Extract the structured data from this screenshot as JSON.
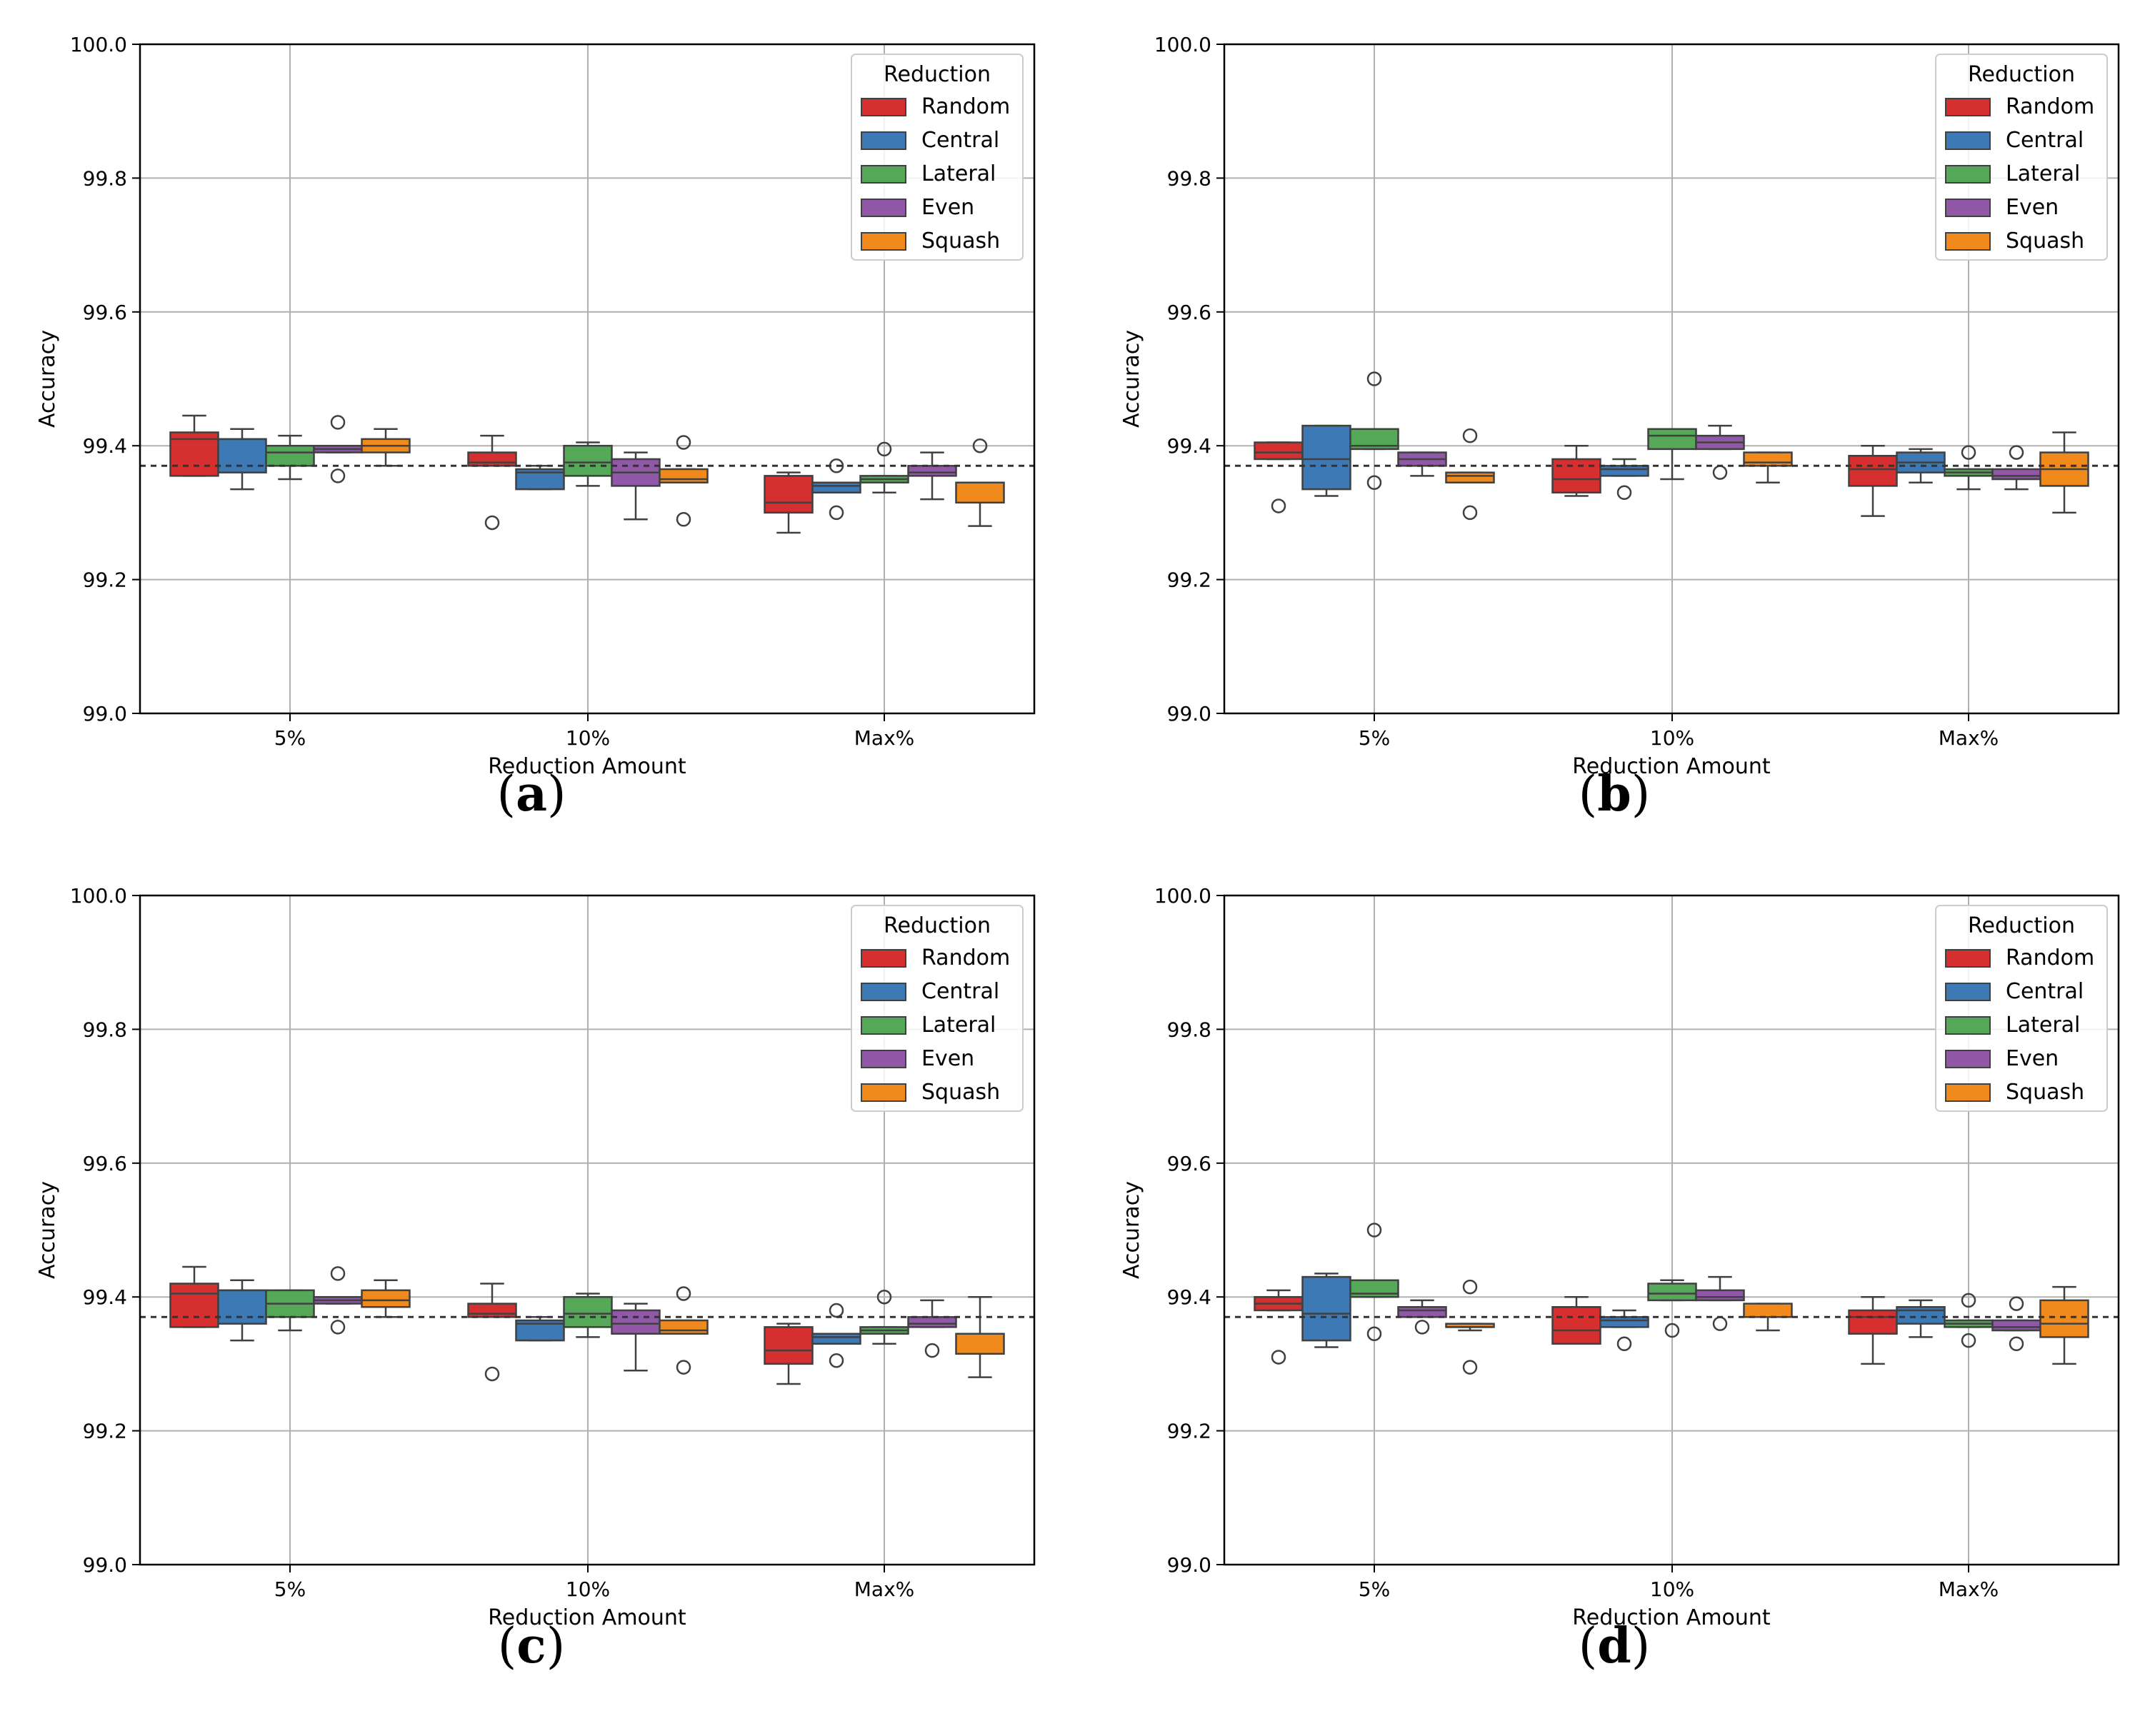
{
  "colors": {
    "Random": "#d62f2f",
    "Central": "#3d7ab5",
    "Lateral": "#55a857",
    "Even": "#9158a8",
    "Squash": "#f08a1c"
  },
  "chart_data": [
    {
      "panel": "(a)",
      "type": "box",
      "xlabel": "Reduction Amount",
      "ylabel": "Accuracy",
      "ylim": [
        99.0,
        100.0
      ],
      "yticks": [
        "99.0",
        "99.2",
        "99.4",
        "99.6",
        "99.8",
        "100.0"
      ],
      "categories": [
        "5%",
        "10%",
        "Max%"
      ],
      "legend_title": "Reduction",
      "legend": [
        "Random",
        "Central",
        "Lateral",
        "Even",
        "Squash"
      ],
      "baseline": 99.37,
      "series": [
        {
          "name": "Random",
          "boxes": [
            {
              "min": 99.355,
              "q1": 99.355,
              "median": 99.41,
              "q3": 99.42,
              "max": 99.445,
              "outliers": []
            },
            {
              "min": 99.37,
              "q1": 99.37,
              "median": 99.375,
              "q3": 99.39,
              "max": 99.415,
              "outliers": [
                99.285
              ]
            },
            {
              "min": 99.27,
              "q1": 99.3,
              "median": 99.315,
              "q3": 99.355,
              "max": 99.36,
              "outliers": []
            }
          ]
        },
        {
          "name": "Central",
          "boxes": [
            {
              "min": 99.335,
              "q1": 99.36,
              "median": 99.41,
              "q3": 99.41,
              "max": 99.425,
              "outliers": []
            },
            {
              "min": 99.335,
              "q1": 99.335,
              "median": 99.36,
              "q3": 99.365,
              "max": 99.37,
              "outliers": []
            },
            {
              "min": 99.33,
              "q1": 99.33,
              "median": 99.34,
              "q3": 99.345,
              "max": 99.345,
              "outliers": [
                99.37,
                99.3
              ]
            }
          ]
        },
        {
          "name": "Lateral",
          "boxes": [
            {
              "min": 99.35,
              "q1": 99.37,
              "median": 99.39,
              "q3": 99.4,
              "max": 99.415,
              "outliers": []
            },
            {
              "min": 99.34,
              "q1": 99.355,
              "median": 99.375,
              "q3": 99.4,
              "max": 99.405,
              "outliers": []
            },
            {
              "min": 99.33,
              "q1": 99.345,
              "median": 99.35,
              "q3": 99.355,
              "max": 99.355,
              "outliers": [
                99.395
              ]
            }
          ]
        },
        {
          "name": "Even",
          "boxes": [
            {
              "min": 99.39,
              "q1": 99.39,
              "median": 99.395,
              "q3": 99.4,
              "max": 99.4,
              "outliers": [
                99.435,
                99.355
              ]
            },
            {
              "min": 99.29,
              "q1": 99.34,
              "median": 99.36,
              "q3": 99.38,
              "max": 99.39,
              "outliers": []
            },
            {
              "min": 99.32,
              "q1": 99.355,
              "median": 99.36,
              "q3": 99.37,
              "max": 99.39,
              "outliers": []
            }
          ]
        },
        {
          "name": "Squash",
          "boxes": [
            {
              "min": 99.37,
              "q1": 99.39,
              "median": 99.4,
              "q3": 99.41,
              "max": 99.425,
              "outliers": []
            },
            {
              "min": 99.345,
              "q1": 99.345,
              "median": 99.35,
              "q3": 99.365,
              "max": 99.365,
              "outliers": [
                99.405,
                99.29
              ]
            },
            {
              "min": 99.28,
              "q1": 99.315,
              "median": 99.345,
              "q3": 99.345,
              "max": 99.345,
              "outliers": [
                99.4
              ]
            }
          ]
        }
      ]
    },
    {
      "panel": "(b)",
      "type": "box",
      "xlabel": "Reduction Amount",
      "ylabel": "Accuracy",
      "ylim": [
        99.0,
        100.0
      ],
      "yticks": [
        "99.0",
        "99.2",
        "99.4",
        "99.6",
        "99.8",
        "100.0"
      ],
      "categories": [
        "5%",
        "10%",
        "Max%"
      ],
      "legend_title": "Reduction",
      "legend": [
        "Random",
        "Central",
        "Lateral",
        "Even",
        "Squash"
      ],
      "baseline": 99.37,
      "series": [
        {
          "name": "Random",
          "boxes": [
            {
              "min": 99.38,
              "q1": 99.38,
              "median": 99.39,
              "q3": 99.405,
              "max": 99.405,
              "outliers": [
                99.31
              ]
            },
            {
              "min": 99.325,
              "q1": 99.33,
              "median": 99.35,
              "q3": 99.38,
              "max": 99.4,
              "outliers": []
            },
            {
              "min": 99.295,
              "q1": 99.34,
              "median": 99.365,
              "q3": 99.385,
              "max": 99.4,
              "outliers": []
            }
          ]
        },
        {
          "name": "Central",
          "boxes": [
            {
              "min": 99.325,
              "q1": 99.335,
              "median": 99.38,
              "q3": 99.43,
              "max": 99.43,
              "outliers": []
            },
            {
              "min": 99.355,
              "q1": 99.355,
              "median": 99.365,
              "q3": 99.37,
              "max": 99.38,
              "outliers": [
                99.33
              ]
            },
            {
              "min": 99.345,
              "q1": 99.36,
              "median": 99.375,
              "q3": 99.39,
              "max": 99.395,
              "outliers": []
            }
          ]
        },
        {
          "name": "Lateral",
          "boxes": [
            {
              "min": 99.395,
              "q1": 99.395,
              "median": 99.4,
              "q3": 99.425,
              "max": 99.425,
              "outliers": [
                99.5,
                99.345
              ]
            },
            {
              "min": 99.35,
              "q1": 99.395,
              "median": 99.415,
              "q3": 99.425,
              "max": 99.425,
              "outliers": []
            },
            {
              "min": 99.335,
              "q1": 99.355,
              "median": 99.36,
              "q3": 99.365,
              "max": 99.365,
              "outliers": [
                99.39
              ]
            }
          ]
        },
        {
          "name": "Even",
          "boxes": [
            {
              "min": 99.355,
              "q1": 99.37,
              "median": 99.38,
              "q3": 99.39,
              "max": 99.39,
              "outliers": []
            },
            {
              "min": 99.395,
              "q1": 99.395,
              "median": 99.405,
              "q3": 99.415,
              "max": 99.43,
              "outliers": [
                99.36
              ]
            },
            {
              "min": 99.335,
              "q1": 99.35,
              "median": 99.355,
              "q3": 99.365,
              "max": 99.365,
              "outliers": [
                99.39
              ]
            }
          ]
        },
        {
          "name": "Squash",
          "boxes": [
            {
              "min": 99.345,
              "q1": 99.345,
              "median": 99.355,
              "q3": 99.36,
              "max": 99.36,
              "outliers": [
                99.415,
                99.3
              ]
            },
            {
              "min": 99.345,
              "q1": 99.37,
              "median": 99.375,
              "q3": 99.39,
              "max": 99.39,
              "outliers": []
            },
            {
              "min": 99.3,
              "q1": 99.34,
              "median": 99.365,
              "q3": 99.39,
              "max": 99.42,
              "outliers": []
            }
          ]
        }
      ]
    },
    {
      "panel": "(c)",
      "type": "box",
      "xlabel": "Reduction Amount",
      "ylabel": "Accuracy",
      "ylim": [
        99.0,
        100.0
      ],
      "yticks": [
        "99.0",
        "99.2",
        "99.4",
        "99.6",
        "99.8",
        "100.0"
      ],
      "categories": [
        "5%",
        "10%",
        "Max%"
      ],
      "legend_title": "Reduction",
      "legend": [
        "Random",
        "Central",
        "Lateral",
        "Even",
        "Squash"
      ],
      "baseline": 99.37,
      "series": [
        {
          "name": "Random",
          "boxes": [
            {
              "min": 99.355,
              "q1": 99.355,
              "median": 99.405,
              "q3": 99.42,
              "max": 99.445,
              "outliers": []
            },
            {
              "min": 99.37,
              "q1": 99.37,
              "median": 99.375,
              "q3": 99.39,
              "max": 99.42,
              "outliers": [
                99.285
              ]
            },
            {
              "min": 99.27,
              "q1": 99.3,
              "median": 99.32,
              "q3": 99.355,
              "max": 99.36,
              "outliers": []
            }
          ]
        },
        {
          "name": "Central",
          "boxes": [
            {
              "min": 99.335,
              "q1": 99.36,
              "median": 99.41,
              "q3": 99.41,
              "max": 99.425,
              "outliers": []
            },
            {
              "min": 99.335,
              "q1": 99.335,
              "median": 99.36,
              "q3": 99.365,
              "max": 99.37,
              "outliers": []
            },
            {
              "min": 99.33,
              "q1": 99.33,
              "median": 99.34,
              "q3": 99.345,
              "max": 99.345,
              "outliers": [
                99.38,
                99.305
              ]
            }
          ]
        },
        {
          "name": "Lateral",
          "boxes": [
            {
              "min": 99.35,
              "q1": 99.37,
              "median": 99.39,
              "q3": 99.41,
              "max": 99.41,
              "outliers": []
            },
            {
              "min": 99.34,
              "q1": 99.355,
              "median": 99.375,
              "q3": 99.4,
              "max": 99.405,
              "outliers": []
            },
            {
              "min": 99.33,
              "q1": 99.345,
              "median": 99.35,
              "q3": 99.355,
              "max": 99.355,
              "outliers": [
                99.4
              ]
            }
          ]
        },
        {
          "name": "Even",
          "boxes": [
            {
              "min": 99.39,
              "q1": 99.39,
              "median": 99.395,
              "q3": 99.4,
              "max": 99.4,
              "outliers": [
                99.435,
                99.355
              ]
            },
            {
              "min": 99.29,
              "q1": 99.345,
              "median": 99.36,
              "q3": 99.38,
              "max": 99.39,
              "outliers": []
            },
            {
              "min": 99.355,
              "q1": 99.355,
              "median": 99.36,
              "q3": 99.37,
              "max": 99.395,
              "outliers": [
                99.32
              ]
            }
          ]
        },
        {
          "name": "Squash",
          "boxes": [
            {
              "min": 99.37,
              "q1": 99.385,
              "median": 99.395,
              "q3": 99.41,
              "max": 99.425,
              "outliers": []
            },
            {
              "min": 99.345,
              "q1": 99.345,
              "median": 99.35,
              "q3": 99.365,
              "max": 99.365,
              "outliers": [
                99.405,
                99.295
              ]
            },
            {
              "min": 99.28,
              "q1": 99.315,
              "median": 99.345,
              "q3": 99.345,
              "max": 99.4,
              "outliers": []
            }
          ]
        }
      ]
    },
    {
      "panel": "(d)",
      "type": "box",
      "xlabel": "Reduction Amount",
      "ylabel": "Accuracy",
      "ylim": [
        99.0,
        100.0
      ],
      "yticks": [
        "99.0",
        "99.2",
        "99.4",
        "99.6",
        "99.8",
        "100.0"
      ],
      "categories": [
        "5%",
        "10%",
        "Max%"
      ],
      "legend_title": "Reduction",
      "legend": [
        "Random",
        "Central",
        "Lateral",
        "Even",
        "Squash"
      ],
      "baseline": 99.37,
      "series": [
        {
          "name": "Random",
          "boxes": [
            {
              "min": 99.38,
              "q1": 99.38,
              "median": 99.39,
              "q3": 99.4,
              "max": 99.41,
              "outliers": [
                99.31
              ]
            },
            {
              "min": 99.33,
              "q1": 99.33,
              "median": 99.35,
              "q3": 99.385,
              "max": 99.4,
              "outliers": []
            },
            {
              "min": 99.3,
              "q1": 99.345,
              "median": 99.37,
              "q3": 99.38,
              "max": 99.4,
              "outliers": []
            }
          ]
        },
        {
          "name": "Central",
          "boxes": [
            {
              "min": 99.325,
              "q1": 99.335,
              "median": 99.375,
              "q3": 99.43,
              "max": 99.435,
              "outliers": []
            },
            {
              "min": 99.355,
              "q1": 99.355,
              "median": 99.365,
              "q3": 99.37,
              "max": 99.38,
              "outliers": [
                99.33
              ]
            },
            {
              "min": 99.34,
              "q1": 99.36,
              "median": 99.38,
              "q3": 99.385,
              "max": 99.395,
              "outliers": []
            }
          ]
        },
        {
          "name": "Lateral",
          "boxes": [
            {
              "min": 99.4,
              "q1": 99.4,
              "median": 99.405,
              "q3": 99.425,
              "max": 99.425,
              "outliers": [
                99.5,
                99.345
              ]
            },
            {
              "min": 99.395,
              "q1": 99.395,
              "median": 99.405,
              "q3": 99.42,
              "max": 99.425,
              "outliers": [
                99.35
              ]
            },
            {
              "min": 99.355,
              "q1": 99.355,
              "median": 99.36,
              "q3": 99.365,
              "max": 99.365,
              "outliers": [
                99.395,
                99.335
              ]
            }
          ]
        },
        {
          "name": "Even",
          "boxes": [
            {
              "min": 99.37,
              "q1": 99.37,
              "median": 99.38,
              "q3": 99.385,
              "max": 99.395,
              "outliers": [
                99.355
              ]
            },
            {
              "min": 99.395,
              "q1": 99.395,
              "median": 99.4,
              "q3": 99.41,
              "max": 99.43,
              "outliers": [
                99.36
              ]
            },
            {
              "min": 99.35,
              "q1": 99.35,
              "median": 99.355,
              "q3": 99.365,
              "max": 99.365,
              "outliers": [
                99.39,
                99.33
              ]
            }
          ]
        },
        {
          "name": "Squash",
          "boxes": [
            {
              "min": 99.35,
              "q1": 99.355,
              "median": 99.355,
              "q3": 99.36,
              "max": 99.36,
              "outliers": [
                99.415,
                99.295
              ]
            },
            {
              "min": 99.35,
              "q1": 99.37,
              "median": 99.37,
              "q3": 99.39,
              "max": 99.39,
              "outliers": []
            },
            {
              "min": 99.3,
              "q1": 99.34,
              "median": 99.36,
              "q3": 99.395,
              "max": 99.415,
              "outliers": []
            }
          ]
        }
      ]
    }
  ]
}
